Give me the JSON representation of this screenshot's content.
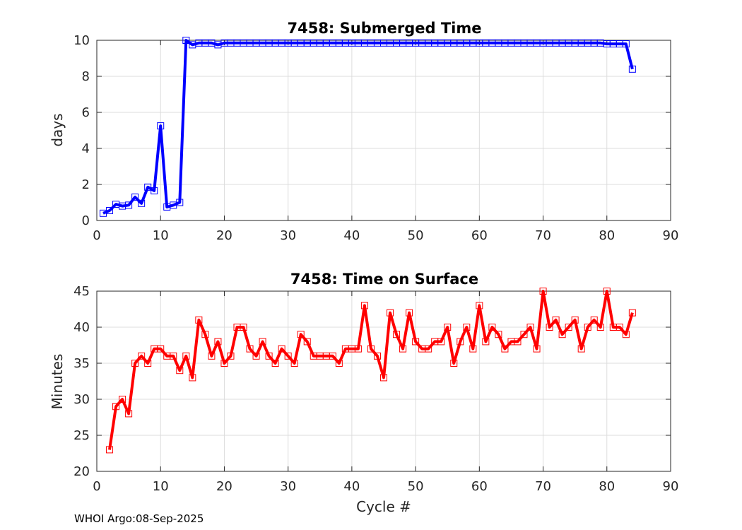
{
  "footer": "WHOI Argo:08-Sep-2025",
  "chart_data": [
    {
      "type": "line",
      "title": "7458: Submerged Time",
      "xlabel": "",
      "ylabel": "days",
      "xlim": [
        0,
        90
      ],
      "ylim": [
        0,
        10
      ],
      "xticks": [
        0,
        10,
        20,
        30,
        40,
        50,
        60,
        70,
        80,
        90
      ],
      "yticks": [
        0,
        2,
        4,
        6,
        8,
        10
      ],
      "grid": true,
      "color": "#0000ff",
      "marker": "square",
      "series": [
        {
          "name": "Submerged Time",
          "x": [
            1,
            2,
            3,
            4,
            5,
            6,
            7,
            8,
            9,
            10,
            11,
            12,
            13,
            14,
            15,
            16,
            17,
            18,
            19,
            20,
            21,
            22,
            23,
            24,
            25,
            26,
            27,
            28,
            29,
            30,
            31,
            32,
            33,
            34,
            35,
            36,
            37,
            38,
            39,
            40,
            41,
            42,
            43,
            44,
            45,
            46,
            47,
            48,
            49,
            50,
            51,
            52,
            53,
            54,
            55,
            56,
            57,
            58,
            59,
            60,
            61,
            62,
            63,
            64,
            65,
            66,
            67,
            68,
            69,
            70,
            71,
            72,
            73,
            74,
            75,
            76,
            77,
            78,
            79,
            80,
            81,
            82,
            83,
            84
          ],
          "y": [
            0.4,
            0.55,
            0.9,
            0.8,
            0.85,
            1.3,
            0.95,
            1.85,
            1.65,
            5.25,
            0.75,
            0.85,
            1.0,
            10.0,
            9.75,
            9.85,
            9.85,
            9.85,
            9.75,
            9.85,
            9.85,
            9.85,
            9.85,
            9.85,
            9.85,
            9.85,
            9.85,
            9.85,
            9.85,
            9.85,
            9.85,
            9.85,
            9.85,
            9.85,
            9.85,
            9.85,
            9.85,
            9.85,
            9.85,
            9.85,
            9.85,
            9.85,
            9.85,
            9.85,
            9.85,
            9.85,
            9.85,
            9.85,
            9.85,
            9.85,
            9.85,
            9.85,
            9.85,
            9.85,
            9.85,
            9.85,
            9.85,
            9.85,
            9.85,
            9.85,
            9.85,
            9.85,
            9.85,
            9.85,
            9.85,
            9.85,
            9.85,
            9.85,
            9.85,
            9.85,
            9.85,
            9.85,
            9.85,
            9.85,
            9.85,
            9.85,
            9.85,
            9.85,
            9.85,
            9.8,
            9.8,
            9.8,
            9.8,
            8.4
          ]
        }
      ]
    },
    {
      "type": "line",
      "title": "7458: Time on Surface",
      "xlabel": "Cycle #",
      "ylabel": "Minutes",
      "xlim": [
        0,
        90
      ],
      "ylim": [
        20,
        45
      ],
      "xticks": [
        0,
        10,
        20,
        30,
        40,
        50,
        60,
        70,
        80,
        90
      ],
      "yticks": [
        20,
        25,
        30,
        35,
        40,
        45
      ],
      "grid": true,
      "color": "#ff0000",
      "marker": "square",
      "series": [
        {
          "name": "Time on Surface",
          "x": [
            2,
            3,
            4,
            5,
            6,
            7,
            8,
            9,
            10,
            11,
            12,
            13,
            14,
            15,
            16,
            17,
            18,
            19,
            20,
            21,
            22,
            23,
            24,
            25,
            26,
            27,
            28,
            29,
            30,
            31,
            32,
            33,
            34,
            35,
            36,
            37,
            38,
            39,
            40,
            41,
            42,
            43,
            44,
            45,
            46,
            47,
            48,
            49,
            50,
            51,
            52,
            53,
            54,
            55,
            56,
            57,
            58,
            59,
            60,
            61,
            62,
            63,
            64,
            65,
            66,
            67,
            68,
            69,
            70,
            71,
            72,
            73,
            74,
            75,
            76,
            77,
            78,
            79,
            80,
            81,
            82,
            83,
            84
          ],
          "y": [
            23,
            29,
            30,
            28,
            35,
            36,
            35,
            37,
            37,
            36,
            36,
            34,
            36,
            33,
            41,
            39,
            36,
            38,
            35,
            36,
            40,
            40,
            37,
            36,
            38,
            36,
            35,
            37,
            36,
            35,
            39,
            38,
            36,
            36,
            36,
            36,
            35,
            37,
            37,
            37,
            43,
            37,
            36,
            33,
            42,
            39,
            37,
            42,
            38,
            37,
            37,
            38,
            38,
            40,
            35,
            38,
            40,
            37,
            43,
            38,
            40,
            39,
            37,
            38,
            38,
            39,
            40,
            37,
            45,
            40,
            41,
            39,
            40,
            41,
            37,
            40,
            41,
            40,
            45,
            40,
            40,
            39,
            42
          ]
        }
      ]
    }
  ]
}
